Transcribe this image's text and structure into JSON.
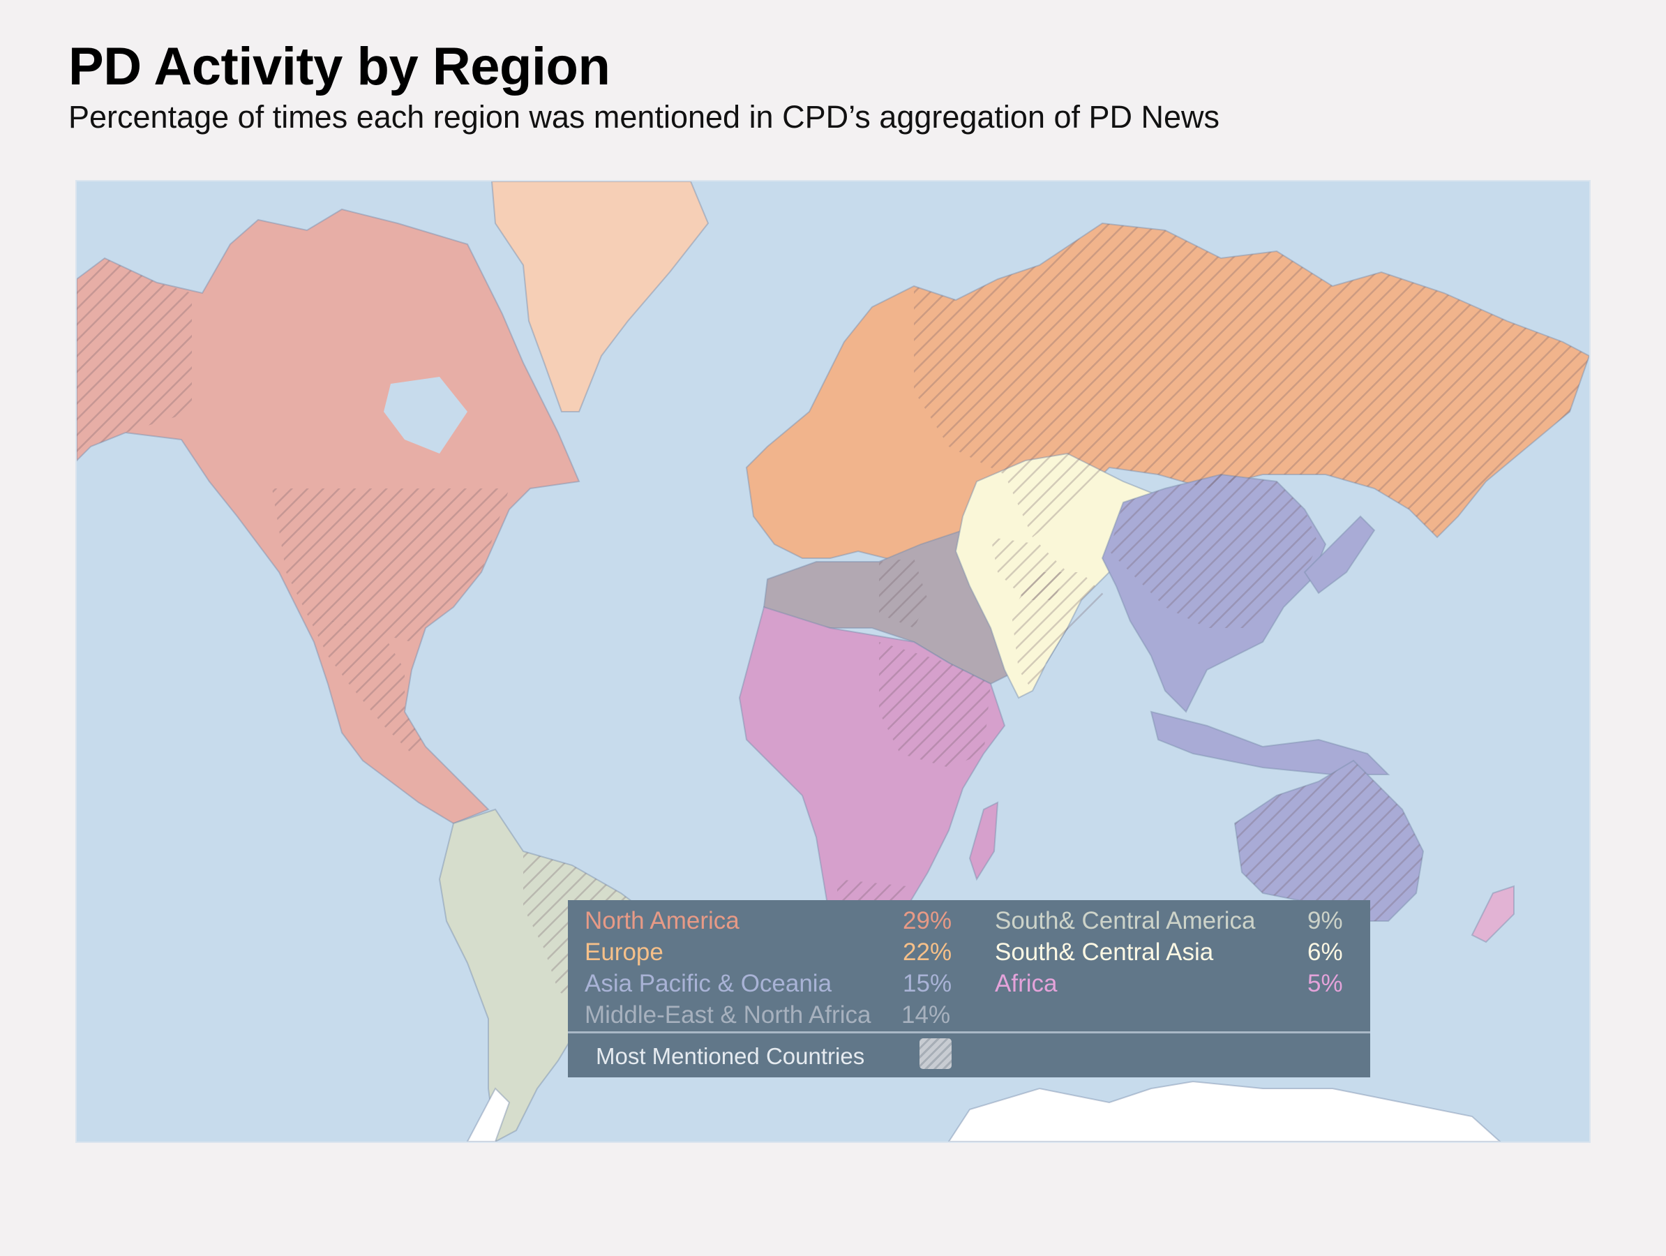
{
  "header": {
    "title": "PD Activity by Region",
    "subtitle": "Percentage of times each region was mentioned in CPD’s aggregation of PD News"
  },
  "colors": {
    "ocean": "#c7dbec",
    "north_america": "#e7aea6",
    "europe": "#f1b48c",
    "greenland": "#f6cfb6",
    "asia_pacific": "#a9abd6",
    "middle_east": "#b2a8b2",
    "africa": "#d6a0cc",
    "south_central_america": "#d6ddcc",
    "south_central_asia": "#faf7d8",
    "antarctica": "#ffffff",
    "legend_bg": "#617789"
  },
  "legend": {
    "entries": [
      {
        "region": "North America",
        "value": 29,
        "unit": "%",
        "color": "#e79a86"
      },
      {
        "region": "Europe",
        "value": 22,
        "unit": "%",
        "color": "#f6c089"
      },
      {
        "region": "Asia Pacific & Oceania",
        "value": 15,
        "unit": "%",
        "color": "#a9b3d6"
      },
      {
        "region": "Middle-East & North Africa",
        "value": 14,
        "unit": "%",
        "color": "#a7b1be"
      },
      {
        "region": "South& Central America",
        "value": 9,
        "unit": "%",
        "color": "#cdd3c9"
      },
      {
        "region": "South& Central Asia",
        "value": 6,
        "unit": "%",
        "color": "#fdf8e4"
      },
      {
        "region": "Africa",
        "value": 5,
        "unit": "%",
        "color": "#e4a3da"
      }
    ],
    "most_mentioned_label": "Most Mentioned Countries",
    "most_mentioned_pattern": "diagonal-hatch"
  }
}
